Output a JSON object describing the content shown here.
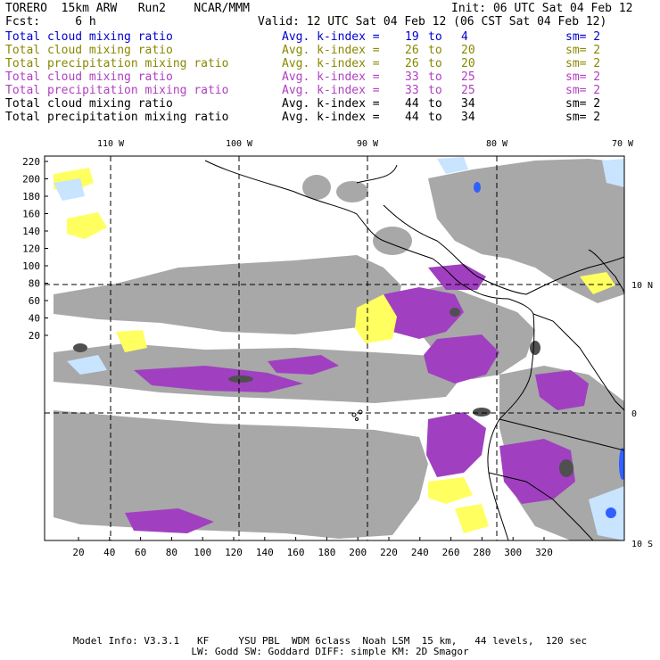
{
  "header": {
    "line1_left": "TORERO  15km ARW   Run2    NCAR/MMM",
    "line1_right": "Init: 06 UTC Sat 04 Feb 12",
    "line2_left": "Fcst:     6 h",
    "line2_right": "Valid: 12 UTC Sat 04 Feb 12 (06 CST Sat 04 Feb 12)"
  },
  "legend": [
    {
      "field": "Total cloud mixing ratio",
      "stat": "Avg. k-index =",
      "a": "19",
      "to": "to",
      "b": "4",
      "sm": "sm= 2",
      "color": "#0000cc"
    },
    {
      "field": "Total cloud mixing ratio",
      "stat": "Avg. k-index =",
      "a": "26",
      "to": "to",
      "b": "20",
      "sm": "sm= 2",
      "color": "#888800"
    },
    {
      "field": "Total precipitation mixing ratio",
      "stat": "Avg. k-index =",
      "a": "26",
      "to": "to",
      "b": "20",
      "sm": "sm= 2",
      "color": "#888800"
    },
    {
      "field": "Total cloud mixing ratio",
      "stat": "Avg. k-index =",
      "a": "33",
      "to": "to",
      "b": "25",
      "sm": "sm= 2",
      "color": "#b040c0"
    },
    {
      "field": "Total precipitation mixing ratio",
      "stat": "Avg. k-index =",
      "a": "33",
      "to": "to",
      "b": "25",
      "sm": "sm= 2",
      "color": "#b040c0"
    },
    {
      "field": "Total cloud mixing ratio",
      "stat": "Avg. k-index =",
      "a": "44",
      "to": "to",
      "b": "34",
      "sm": "sm= 2",
      "color": "#000000"
    },
    {
      "field": "Total precipitation mixing ratio",
      "stat": "Avg. k-index =",
      "a": "44",
      "to": "to",
      "b": "34",
      "sm": "sm= 2",
      "color": "#000000"
    }
  ],
  "lon_labels": [
    "110 W",
    "100 W",
    "90 W",
    "80 W",
    "70 W"
  ],
  "lat_labels": [
    "10 N",
    "0",
    "10 S"
  ],
  "y_ticks": [
    "220",
    "200",
    "180",
    "160",
    "140",
    "120",
    "100",
    "80",
    "60",
    "40",
    "20"
  ],
  "x_ticks": [
    "20",
    "40",
    "60",
    "80",
    "100",
    "120",
    "140",
    "160",
    "180",
    "200",
    "220",
    "240",
    "260",
    "280",
    "300",
    "320"
  ],
  "footer": {
    "line1": "Model Info: V3.3.1   KF     YSU PBL  WDM 6class  Noah LSM  15 km,   44 levels,  120 sec",
    "line2": "LW: Godd SW: Goddard DIFF: simple KM: 2D Smagor"
  },
  "colors": {
    "gray": "#a8a8a8",
    "dark": "#505050",
    "purple": "#a040c0",
    "yellow": "#ffff60",
    "lightblue": "#c8e4ff",
    "blue": "#3060ff"
  }
}
